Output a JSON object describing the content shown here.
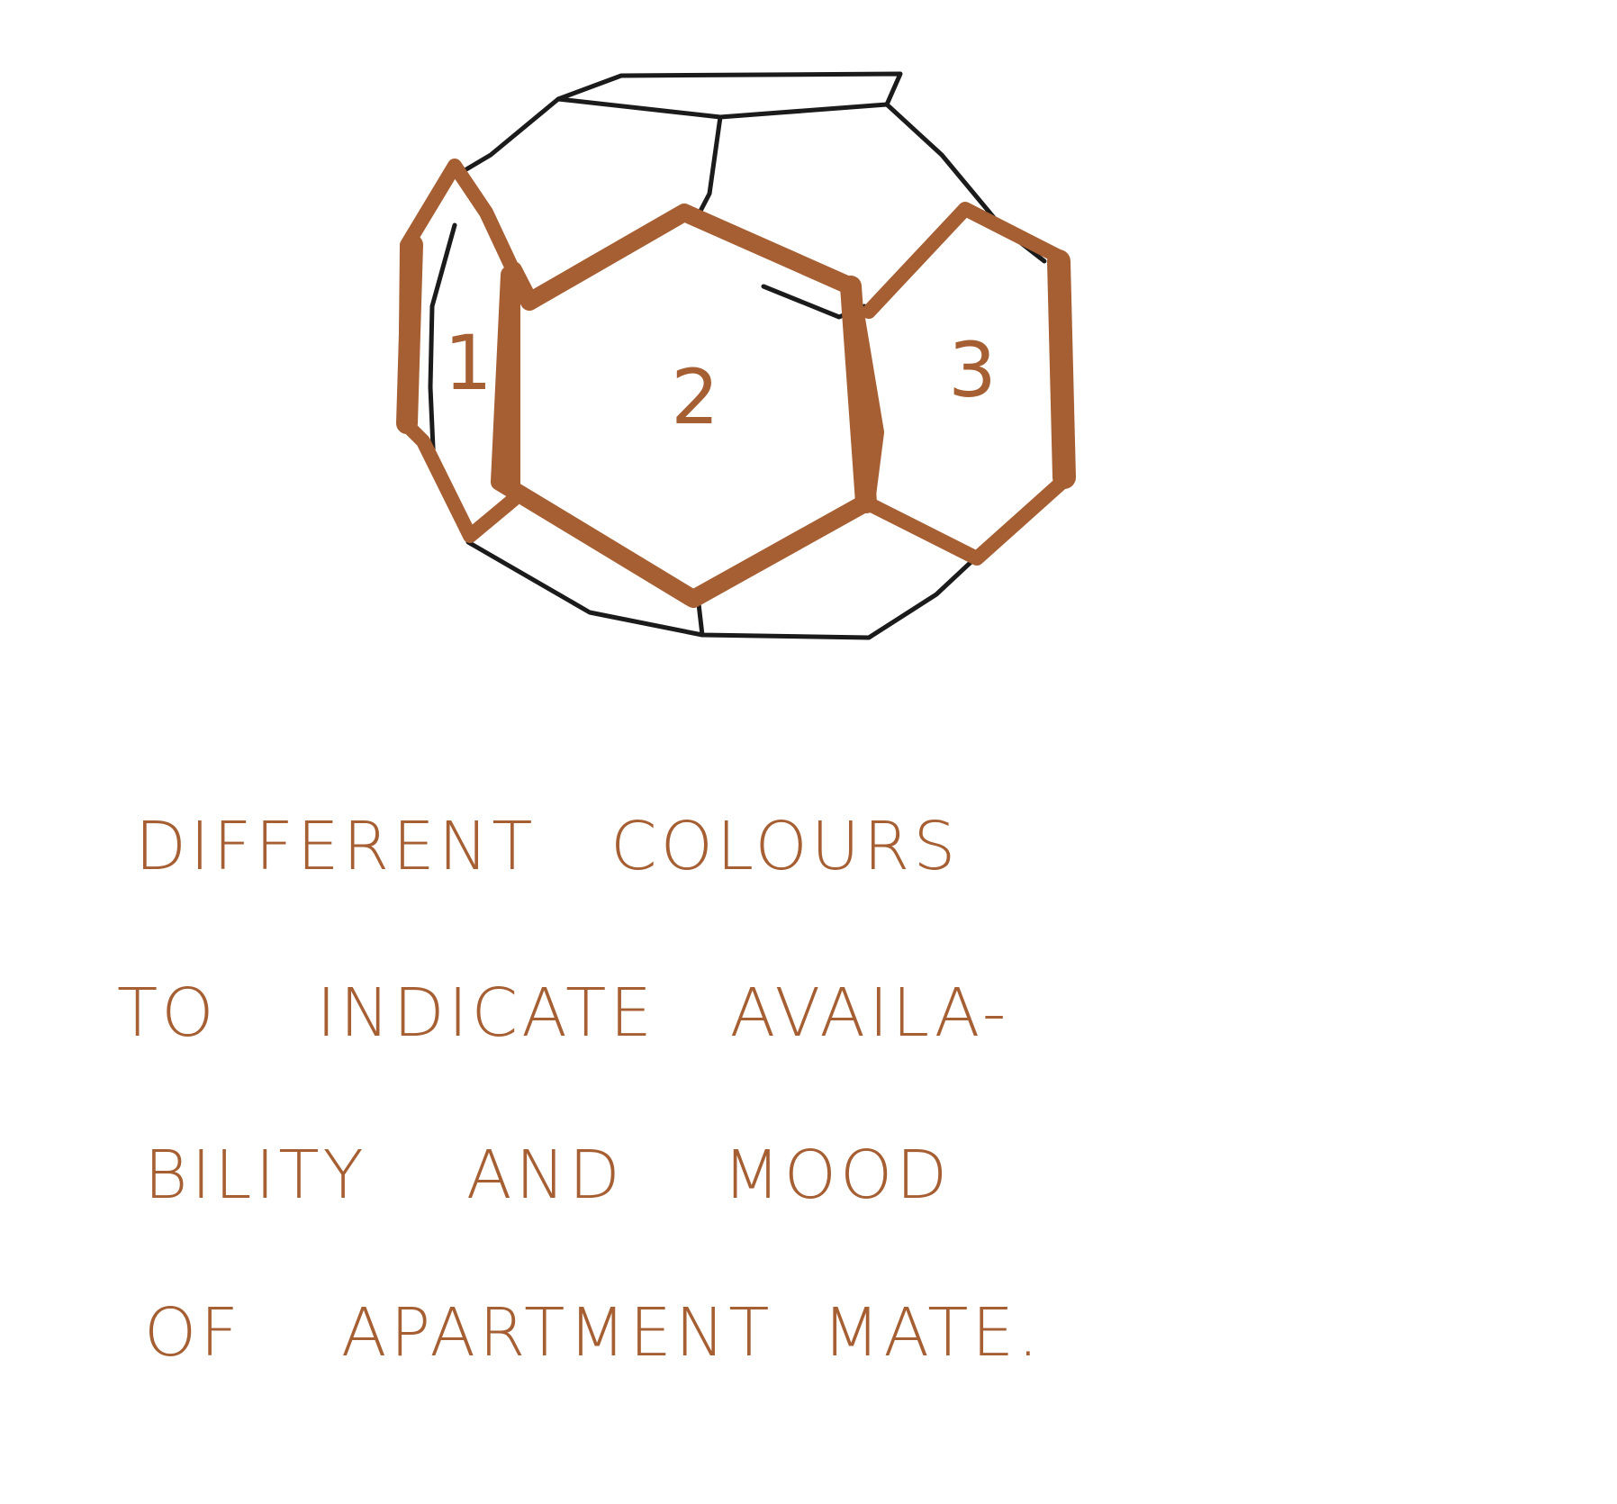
{
  "diagram": {
    "faces": [
      {
        "number": "1"
      },
      {
        "number": "2"
      },
      {
        "number": "3"
      }
    ],
    "note_lines": [
      "DIFFERENT   COLOURS",
      "TO    INDICATE   AVAILA-",
      "BILITY    AND    MOOD",
      "OF    APARTMENT  MATE."
    ]
  },
  "colors": {
    "outline": "#1b1b1b",
    "highlight": "#a65f33",
    "background": "#ffffff"
  }
}
